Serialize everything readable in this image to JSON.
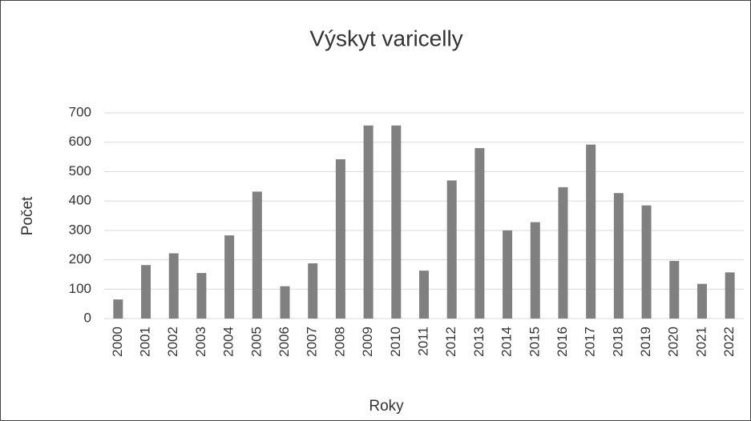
{
  "chart_data": {
    "type": "bar",
    "title": "Výskyt varicelly",
    "x_label": "Roky",
    "y_label": "Počet",
    "categories": [
      "2000",
      "2001",
      "2002",
      "2003",
      "2004",
      "2005",
      "2006",
      "2007",
      "2008",
      "2009",
      "2010",
      "2011",
      "2012",
      "2013",
      "2014",
      "2015",
      "2016",
      "2017",
      "2018",
      "2019",
      "2020",
      "2021",
      "2022"
    ],
    "values": [
      65,
      182,
      222,
      155,
      283,
      432,
      110,
      188,
      542,
      657,
      657,
      163,
      470,
      580,
      300,
      328,
      447,
      592,
      427,
      385,
      196,
      118,
      157
    ],
    "color": "#808080",
    "ylim": [
      0,
      700
    ],
    "yticks": [
      0,
      100,
      200,
      300,
      400,
      500,
      600,
      700
    ],
    "grid": true
  }
}
